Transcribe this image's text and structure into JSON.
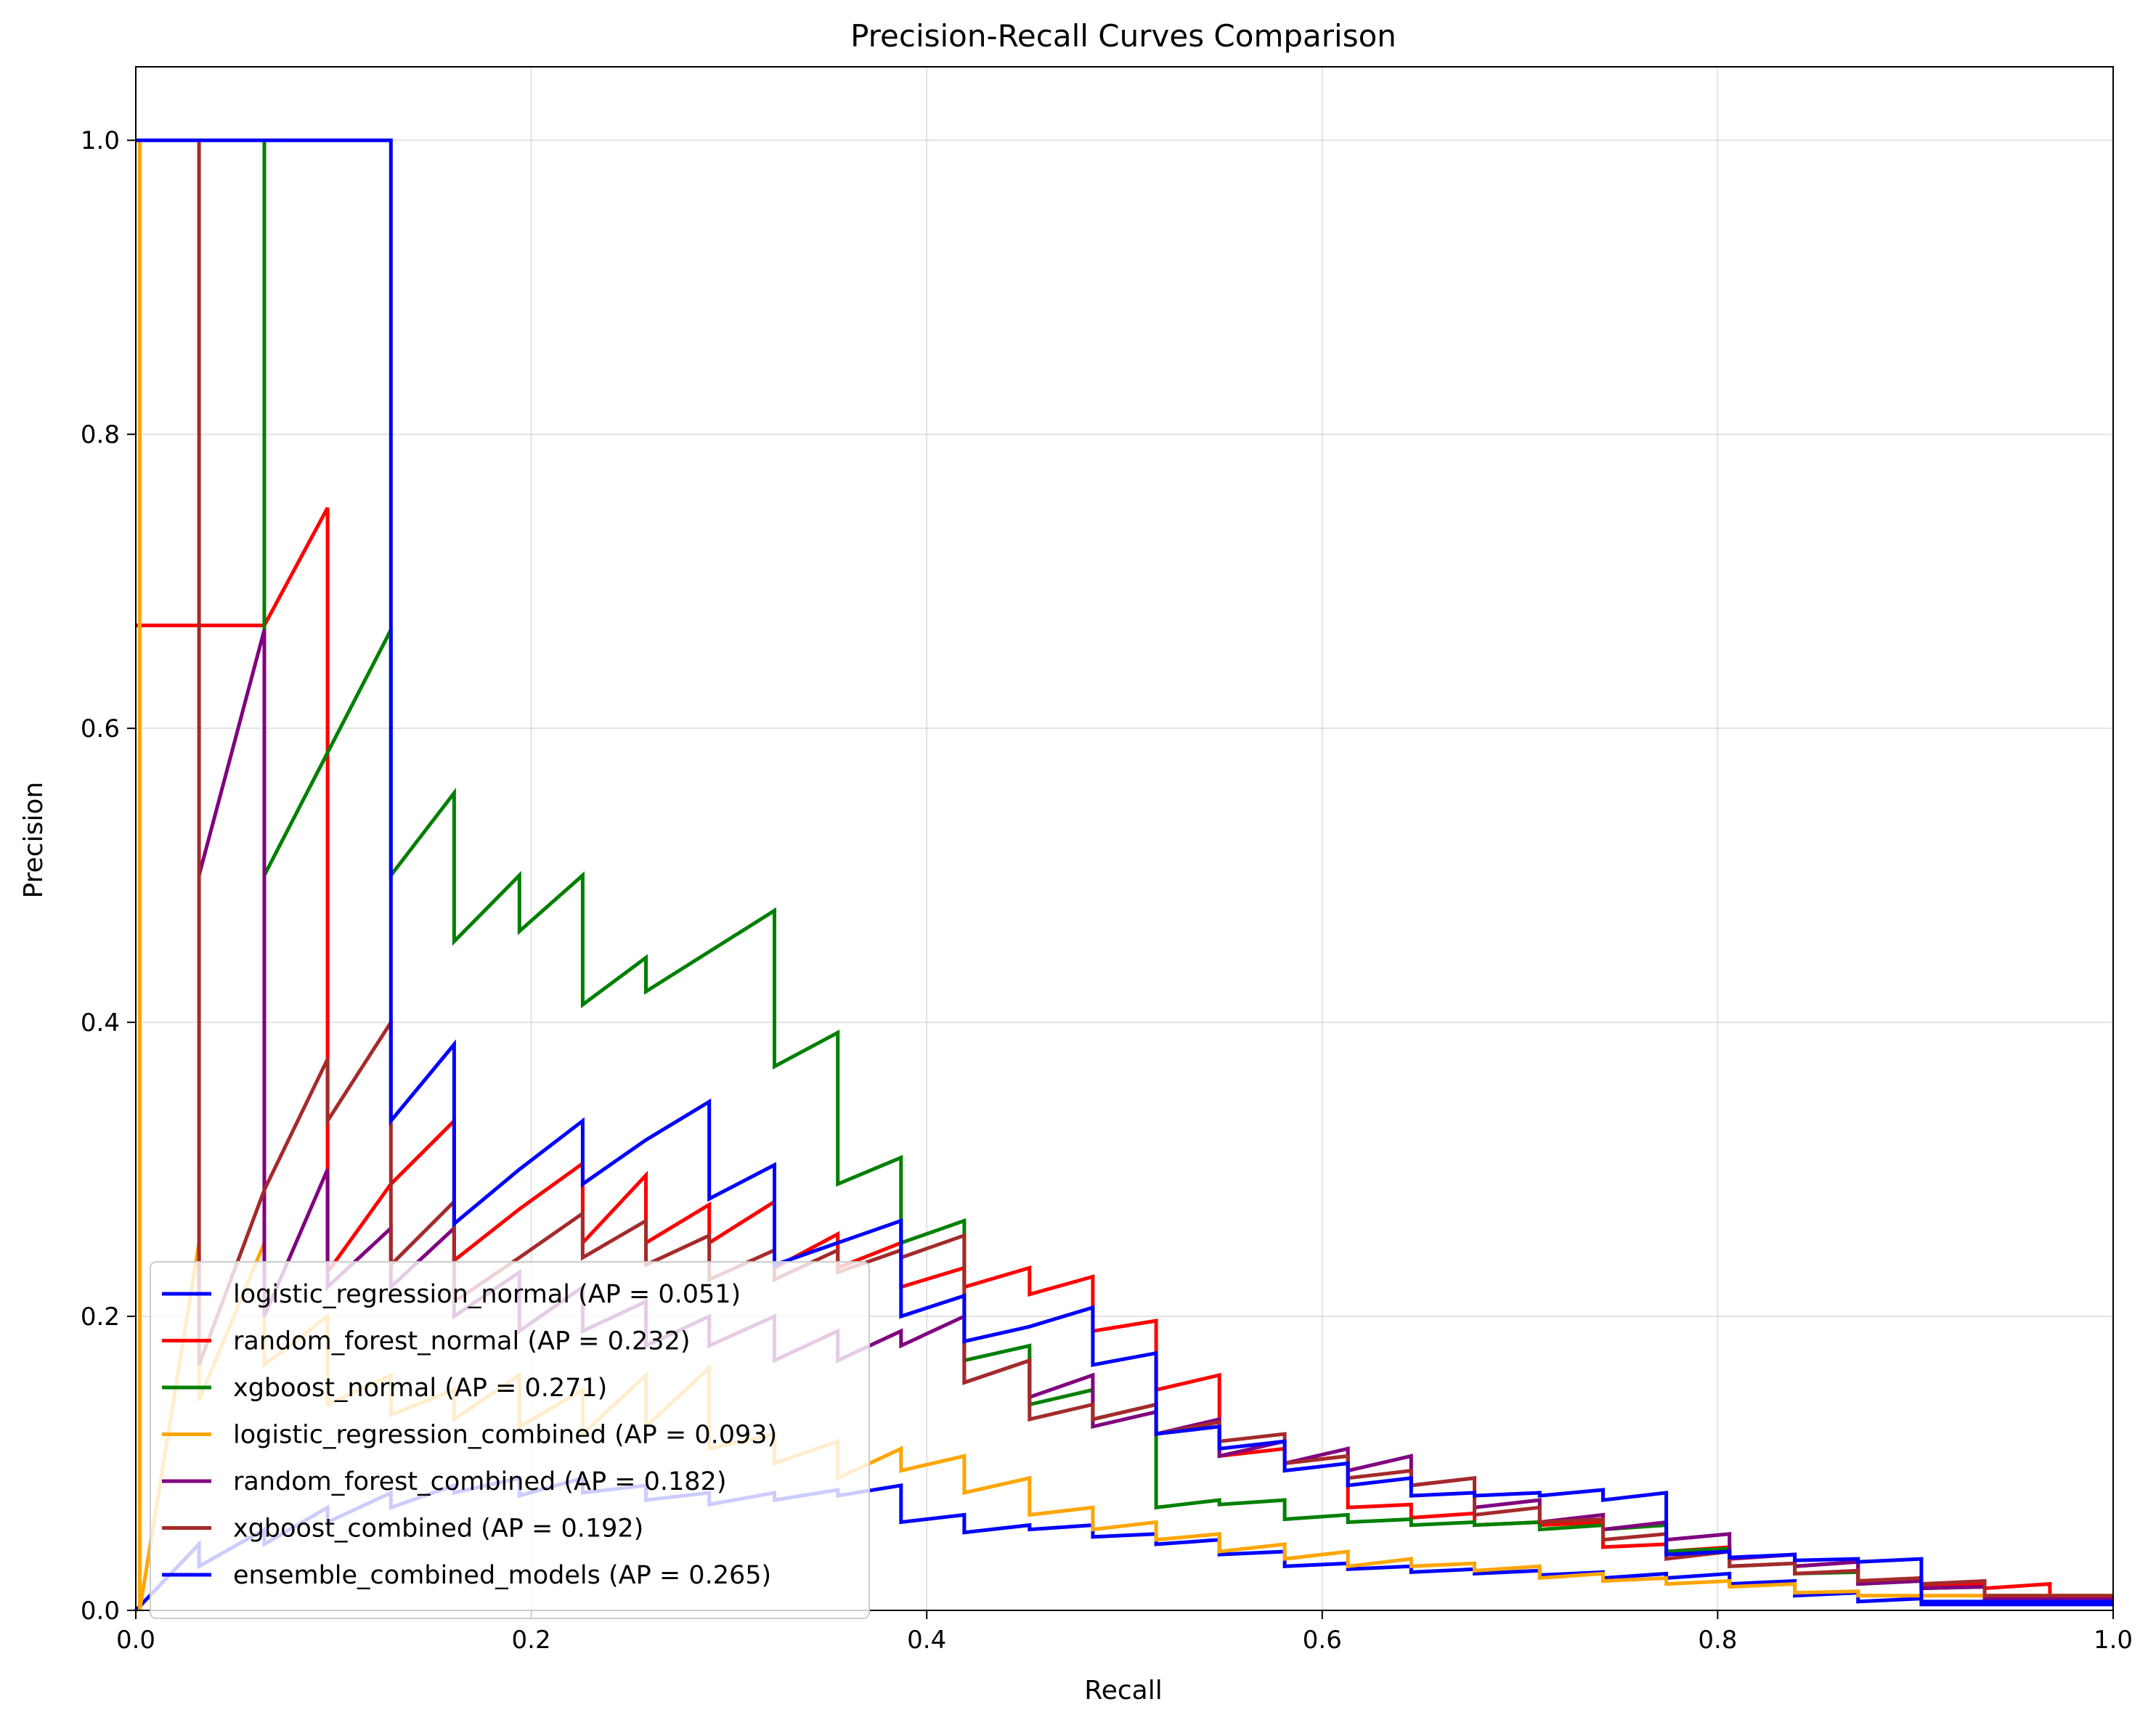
{
  "chart_data": {
    "type": "line",
    "title": "Precision-Recall Curves Comparison",
    "xlabel": "Recall",
    "ylabel": "Precision",
    "xlim": [
      0.0,
      1.0
    ],
    "ylim": [
      0.0,
      1.05
    ],
    "xticks": [
      "0.0",
      "0.2",
      "0.4",
      "0.6",
      "0.8",
      "1.0"
    ],
    "yticks": [
      "0.0",
      "0.2",
      "0.4",
      "0.6",
      "0.8",
      "1.0"
    ],
    "grid": true,
    "legend_position": "lower-left",
    "series": [
      {
        "name": "logistic_regression_normal (AP = 0.051)",
        "color": "#0000ff",
        "x": [
          0,
          0.032,
          0.032,
          0.065,
          0.065,
          0.097,
          0.097,
          0.129,
          0.129,
          0.161,
          0.161,
          0.194,
          0.194,
          0.226,
          0.226,
          0.258,
          0.258,
          0.29,
          0.29,
          0.323,
          0.323,
          0.355,
          0.355,
          0.387,
          0.387,
          0.419,
          0.419,
          0.452,
          0.452,
          0.484,
          0.484,
          0.516,
          0.516,
          0.548,
          0.548,
          0.581,
          0.581,
          0.613,
          0.613,
          0.645,
          0.645,
          0.677,
          0.677,
          0.71,
          0.71,
          0.742,
          0.742,
          0.774,
          0.774,
          0.806,
          0.806,
          0.839,
          0.839,
          0.871,
          0.871,
          0.903,
          0.903,
          1.0
        ],
        "y": [
          0,
          0.045,
          0.03,
          0.055,
          0.045,
          0.07,
          0.06,
          0.08,
          0.07,
          0.085,
          0.08,
          0.09,
          0.078,
          0.09,
          0.08,
          0.085,
          0.075,
          0.08,
          0.072,
          0.08,
          0.075,
          0.082,
          0.078,
          0.085,
          0.06,
          0.065,
          0.053,
          0.058,
          0.055,
          0.058,
          0.05,
          0.052,
          0.045,
          0.048,
          0.038,
          0.04,
          0.03,
          0.032,
          0.028,
          0.03,
          0.026,
          0.028,
          0.025,
          0.027,
          0.024,
          0.026,
          0.022,
          0.025,
          0.022,
          0.025,
          0.018,
          0.02,
          0.01,
          0.012,
          0.006,
          0.008,
          0.004,
          0.004
        ]
      },
      {
        "name": "random_forest_normal (AP = 0.232)",
        "color": "#ff0000",
        "x": [
          0,
          0.065,
          0.065,
          0.097,
          0.097,
          0.129,
          0.129,
          0.161,
          0.161,
          0.194,
          0.194,
          0.226,
          0.226,
          0.258,
          0.258,
          0.29,
          0.29,
          0.323,
          0.323,
          0.355,
          0.355,
          0.387,
          0.387,
          0.419,
          0.419,
          0.452,
          0.452,
          0.484,
          0.484,
          0.516,
          0.516,
          0.548,
          0.548,
          0.581,
          0.581,
          0.613,
          0.613,
          0.645,
          0.645,
          0.677,
          0.677,
          0.71,
          0.71,
          0.742,
          0.742,
          0.774,
          0.774,
          0.806,
          0.806,
          0.839,
          0.839,
          0.871,
          0.871,
          0.903,
          0.903,
          0.935,
          0.935,
          0.968,
          0.968,
          1.0
        ],
        "y": [
          0.67,
          0.67,
          0.67,
          0.75,
          0.23,
          0.29,
          0.29,
          0.333,
          0.238,
          0.273,
          0.273,
          0.304,
          0.25,
          0.296,
          0.25,
          0.276,
          0.25,
          0.278,
          0.233,
          0.256,
          0.233,
          0.25,
          0.22,
          0.233,
          0.22,
          0.233,
          0.215,
          0.227,
          0.19,
          0.197,
          0.15,
          0.16,
          0.105,
          0.11,
          0.1,
          0.105,
          0.07,
          0.072,
          0.063,
          0.066,
          0.058,
          0.06,
          0.058,
          0.06,
          0.043,
          0.045,
          0.04,
          0.043,
          0.035,
          0.038,
          0.03,
          0.033,
          0.02,
          0.022,
          0.016,
          0.018,
          0.015,
          0.018,
          0.008,
          0.008
        ]
      },
      {
        "name": "xgboost_normal (AP = 0.271)",
        "color": "#008000",
        "x": [
          0.065,
          0.065,
          0.065,
          0.129,
          0.129,
          0.161,
          0.161,
          0.194,
          0.194,
          0.226,
          0.226,
          0.258,
          0.258,
          0.323,
          0.323,
          0.355,
          0.355,
          0.387,
          0.387,
          0.419,
          0.419,
          0.452,
          0.452,
          0.484,
          0.484,
          0.516,
          0.516,
          0.548,
          0.548,
          0.581,
          0.581,
          0.613,
          0.613,
          0.645,
          0.645,
          0.677,
          0.677,
          0.71,
          0.71,
          0.742,
          0.742,
          0.774,
          0.774,
          0.806,
          0.806,
          0.839,
          0.839,
          0.871,
          0.871,
          0.903,
          0.903,
          0.935,
          0.935,
          1.0
        ],
        "y": [
          1.0,
          0.667,
          0.5,
          0.667,
          0.5,
          0.556,
          0.455,
          0.5,
          0.462,
          0.5,
          0.412,
          0.444,
          0.421,
          0.476,
          0.37,
          0.393,
          0.29,
          0.308,
          0.25,
          0.265,
          0.17,
          0.18,
          0.14,
          0.15,
          0.13,
          0.14,
          0.07,
          0.075,
          0.072,
          0.075,
          0.062,
          0.065,
          0.06,
          0.062,
          0.058,
          0.06,
          0.058,
          0.06,
          0.055,
          0.058,
          0.055,
          0.058,
          0.04,
          0.042,
          0.03,
          0.032,
          0.025,
          0.026,
          0.018,
          0.02,
          0.015,
          0.016,
          0.01,
          0.01
        ]
      },
      {
        "name": "logistic_regression_combined (AP = 0.093)",
        "color": "#ffa500",
        "x": [
          0.002,
          0.002,
          0.032,
          0.032,
          0.065,
          0.065,
          0.097,
          0.097,
          0.129,
          0.129,
          0.161,
          0.161,
          0.194,
          0.194,
          0.226,
          0.226,
          0.258,
          0.258,
          0.29,
          0.29,
          0.323,
          0.323,
          0.355,
          0.355,
          0.387,
          0.387,
          0.419,
          0.419,
          0.452,
          0.452,
          0.484,
          0.484,
          0.516,
          0.516,
          0.548,
          0.548,
          0.581,
          0.581,
          0.613,
          0.613,
          0.645,
          0.645,
          0.677,
          0.677,
          0.71,
          0.71,
          0.742,
          0.742,
          0.774,
          0.774,
          0.806,
          0.806,
          0.839,
          0.839,
          0.871,
          0.871,
          1.0
        ],
        "y": [
          1.0,
          0.0,
          0.25,
          0.143,
          0.25,
          0.167,
          0.2,
          0.14,
          0.16,
          0.133,
          0.15,
          0.13,
          0.16,
          0.125,
          0.15,
          0.12,
          0.16,
          0.125,
          0.165,
          0.11,
          0.12,
          0.1,
          0.115,
          0.09,
          0.11,
          0.095,
          0.105,
          0.08,
          0.09,
          0.065,
          0.07,
          0.055,
          0.06,
          0.048,
          0.052,
          0.04,
          0.045,
          0.035,
          0.04,
          0.03,
          0.035,
          0.03,
          0.032,
          0.027,
          0.03,
          0.022,
          0.025,
          0.02,
          0.022,
          0.018,
          0.02,
          0.016,
          0.018,
          0.012,
          0.013,
          0.01,
          0.01
        ]
      },
      {
        "name": "random_forest_combined (AP = 0.182)",
        "color": "#800080",
        "x": [
          0.032,
          0.065,
          0.065,
          0.097,
          0.097,
          0.129,
          0.129,
          0.161,
          0.161,
          0.194,
          0.194,
          0.226,
          0.226,
          0.258,
          0.258,
          0.29,
          0.29,
          0.323,
          0.323,
          0.355,
          0.355,
          0.387,
          0.387,
          0.419,
          0.419,
          0.452,
          0.452,
          0.484,
          0.484,
          0.516,
          0.516,
          0.548,
          0.548,
          0.581,
          0.581,
          0.613,
          0.613,
          0.645,
          0.645,
          0.677,
          0.677,
          0.71,
          0.71,
          0.742,
          0.742,
          0.774,
          0.774,
          0.806,
          0.806,
          0.839,
          0.839,
          0.871,
          0.871,
          0.903,
          0.903,
          0.935,
          0.935,
          1.0
        ],
        "y": [
          0.5,
          0.667,
          0.2,
          0.3,
          0.22,
          0.26,
          0.22,
          0.26,
          0.2,
          0.23,
          0.19,
          0.22,
          0.19,
          0.21,
          0.18,
          0.2,
          0.18,
          0.2,
          0.17,
          0.19,
          0.17,
          0.19,
          0.18,
          0.2,
          0.155,
          0.17,
          0.145,
          0.16,
          0.125,
          0.135,
          0.12,
          0.13,
          0.105,
          0.115,
          0.1,
          0.11,
          0.095,
          0.105,
          0.085,
          0.09,
          0.07,
          0.075,
          0.06,
          0.065,
          0.055,
          0.06,
          0.048,
          0.052,
          0.035,
          0.038,
          0.03,
          0.033,
          0.018,
          0.02,
          0.015,
          0.016,
          0.008,
          0.008
        ]
      },
      {
        "name": "xgboost_combined (AP = 0.192)",
        "color": "#a52a2a",
        "x": [
          0.032,
          0.032,
          0.032,
          0.065,
          0.065,
          0.097,
          0.097,
          0.129,
          0.129,
          0.161,
          0.161,
          0.194,
          0.194,
          0.226,
          0.226,
          0.258,
          0.258,
          0.29,
          0.29,
          0.323,
          0.323,
          0.355,
          0.355,
          0.387,
          0.387,
          0.419,
          0.419,
          0.452,
          0.452,
          0.484,
          0.484,
          0.516,
          0.516,
          0.548,
          0.548,
          0.581,
          0.581,
          0.613,
          0.613,
          0.645,
          0.645,
          0.677,
          0.677,
          0.71,
          0.71,
          0.742,
          0.742,
          0.774,
          0.774,
          0.806,
          0.806,
          0.839,
          0.839,
          0.871,
          0.871,
          0.903,
          0.903,
          0.935,
          0.935,
          1.0
        ],
        "y": [
          1.0,
          0.167,
          0.167,
          0.286,
          0.286,
          0.375,
          0.333,
          0.4,
          0.235,
          0.278,
          0.21,
          0.24,
          0.24,
          0.27,
          0.24,
          0.265,
          0.235,
          0.255,
          0.225,
          0.245,
          0.225,
          0.245,
          0.23,
          0.245,
          0.24,
          0.255,
          0.155,
          0.17,
          0.13,
          0.14,
          0.13,
          0.14,
          0.12,
          0.128,
          0.115,
          0.12,
          0.1,
          0.105,
          0.09,
          0.095,
          0.085,
          0.09,
          0.065,
          0.07,
          0.06,
          0.062,
          0.048,
          0.052,
          0.035,
          0.04,
          0.03,
          0.032,
          0.025,
          0.027,
          0.02,
          0.022,
          0.018,
          0.02,
          0.01,
          0.01
        ]
      },
      {
        "name": "ensemble_combined_models (AP = 0.265)",
        "color": "#0000ff",
        "x": [
          0.0,
          0.129,
          0.129,
          0.161,
          0.161,
          0.194,
          0.194,
          0.226,
          0.226,
          0.258,
          0.258,
          0.29,
          0.29,
          0.323,
          0.323,
          0.355,
          0.355,
          0.387,
          0.387,
          0.419,
          0.419,
          0.452,
          0.452,
          0.484,
          0.484,
          0.516,
          0.516,
          0.548,
          0.548,
          0.581,
          0.581,
          0.613,
          0.613,
          0.645,
          0.645,
          0.677,
          0.677,
          0.71,
          0.71,
          0.742,
          0.742,
          0.774,
          0.774,
          0.806,
          0.806,
          0.839,
          0.839,
          0.871,
          0.871,
          0.903,
          0.903,
          1.0
        ],
        "y": [
          1.0,
          1.0,
          0.333,
          0.385,
          0.263,
          0.3,
          0.3,
          0.333,
          0.29,
          0.32,
          0.32,
          0.346,
          0.28,
          0.303,
          0.235,
          0.25,
          0.25,
          0.265,
          0.2,
          0.214,
          0.183,
          0.193,
          0.193,
          0.206,
          0.167,
          0.175,
          0.12,
          0.125,
          0.11,
          0.115,
          0.095,
          0.1,
          0.085,
          0.09,
          0.078,
          0.08,
          0.078,
          0.08,
          0.078,
          0.082,
          0.075,
          0.08,
          0.038,
          0.04,
          0.036,
          0.038,
          0.034,
          0.035,
          0.033,
          0.035,
          0.006,
          0.006
        ]
      }
    ]
  }
}
